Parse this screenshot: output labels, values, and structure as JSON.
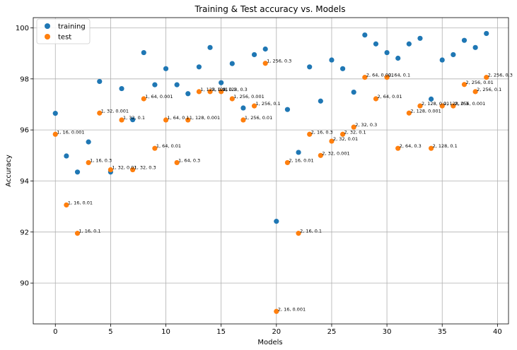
{
  "chart_data": {
    "type": "scatter",
    "title": "Training & Test accuracy vs. Models",
    "xlabel": "Models",
    "ylabel": "Accuracy",
    "xlim": [
      -2,
      41
    ],
    "ylim": [
      88.4,
      100.4
    ],
    "xticks": [
      0,
      5,
      10,
      15,
      20,
      25,
      30,
      35,
      40
    ],
    "yticks": [
      90,
      92,
      94,
      96,
      98,
      100
    ],
    "grid": true,
    "legend_position": "top-left",
    "colors": {
      "training": "#1f77b4",
      "test": "#ff7f0e"
    },
    "series": [
      {
        "name": "training",
        "x": [
          0,
          1,
          2,
          3,
          4,
          5,
          6,
          7,
          8,
          9,
          10,
          11,
          12,
          13,
          14,
          15,
          16,
          17,
          18,
          19,
          20,
          21,
          22,
          23,
          24,
          25,
          26,
          27,
          28,
          29,
          30,
          31,
          32,
          33,
          34,
          35,
          36,
          37,
          38,
          39
        ],
        "y": [
          96.65,
          94.98,
          94.35,
          95.53,
          97.9,
          94.35,
          97.62,
          96.4,
          99.03,
          97.77,
          98.4,
          97.77,
          97.42,
          98.47,
          99.23,
          97.85,
          98.6,
          96.86,
          98.95,
          99.17,
          92.42,
          96.8,
          95.12,
          98.47,
          97.13,
          98.74,
          98.4,
          97.48,
          99.72,
          99.37,
          99.03,
          98.81,
          99.37,
          99.59,
          97.21,
          98.74,
          98.95,
          99.51,
          99.23,
          99.78
        ]
      },
      {
        "name": "test",
        "x": [
          0,
          1,
          2,
          3,
          4,
          5,
          6,
          7,
          8,
          9,
          10,
          11,
          12,
          13,
          14,
          15,
          16,
          17,
          18,
          19,
          20,
          21,
          22,
          23,
          24,
          25,
          26,
          27,
          28,
          29,
          30,
          31,
          32,
          33,
          34,
          35,
          36,
          37,
          38,
          39
        ],
        "y": [
          95.83,
          93.06,
          91.95,
          94.72,
          96.66,
          94.44,
          96.39,
          94.44,
          97.22,
          95.28,
          96.39,
          94.72,
          96.39,
          97.5,
          97.5,
          97.5,
          97.22,
          96.39,
          96.94,
          98.61,
          88.89,
          94.72,
          91.95,
          95.83,
          95.0,
          95.56,
          95.83,
          96.11,
          98.06,
          97.22,
          98.06,
          95.28,
          96.66,
          96.94,
          95.28,
          96.94,
          96.94,
          97.78,
          97.5,
          98.06
        ],
        "labels": [
          "1, 16, 0.001",
          "1, 16, 0.01",
          "1, 16, 0.1",
          "1, 16, 0.3",
          "1, 32, 0.001",
          "1, 32, 0.01",
          "1, 32, 0.1",
          "1, 32, 0.3",
          "1, 64, 0.001",
          "1, 64, 0.01",
          "1, 64, 0.1",
          "1, 64, 0.3",
          "1, 128, 0.001",
          "1, 128, 0.01",
          "1, 128, 0.1",
          "1, 128, 0.3",
          "1, 256, 0.001",
          "1, 256, 0.01",
          "1, 256, 0.1",
          "1, 256, 0.3",
          "2, 16, 0.001",
          "2, 16, 0.01",
          "2, 16, 0.1",
          "2, 16, 0.3",
          "2, 32, 0.001",
          "2, 32, 0.01",
          "2, 32, 0.1",
          "2, 32, 0.3",
          "2, 64, 0.001",
          "2, 64, 0.01",
          "2, 64, 0.1",
          "2, 64, 0.3",
          "2, 128, 0.001",
          "2, 128, 0.01",
          "2, 128, 0.1",
          "2, 128, 0.3",
          "2, 256, 0.001",
          "2, 256, 0.01",
          "2, 256, 0.1",
          "2, 256, 0.3"
        ]
      }
    ]
  }
}
